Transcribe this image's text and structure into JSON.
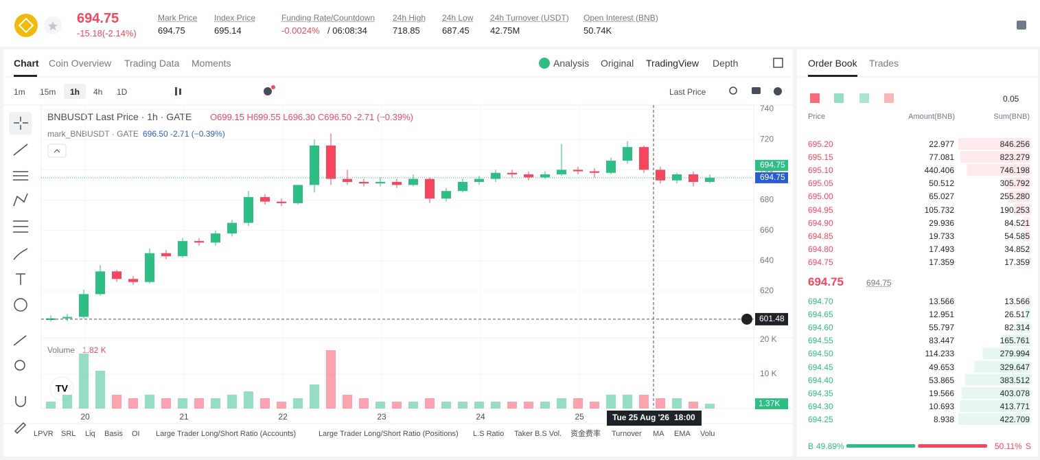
{
  "header": {
    "price": "694.75",
    "change": "-15.18(-2.14%)",
    "stats": [
      {
        "label": "Mark Price",
        "value": "694.75"
      },
      {
        "label": "Index Price",
        "value": "695.14"
      },
      {
        "label": "Funding Rate/Countdown",
        "value": "-0.0024%",
        "extra": "/ 06:08:34"
      },
      {
        "label": "24h High",
        "value": "718.85"
      },
      {
        "label": "24h Low",
        "value": "687.45"
      },
      {
        "label": "24h Turnover (USDT)",
        "value": "42.75M"
      },
      {
        "label": "Open Interest (BNB)",
        "value": "50.74K"
      }
    ]
  },
  "tabs": [
    "Chart",
    "Coin Overview",
    "Trading Data",
    "Moments"
  ],
  "view_tabs": [
    "Analysis",
    "Original",
    "TradingView",
    "Depth"
  ],
  "intervals": [
    "1m",
    "15m",
    "1h",
    "4h",
    "1D"
  ],
  "price_source": "Last Price",
  "legend": {
    "main": "BNBUSDT Last Price · 1h · GATE",
    "ohlc": "O699.15 H699.55 L696.30 C696.50 -2.71 (−0.39%)",
    "mark_name": "mark_BNBUSDT · GATE",
    "mark_values": "696.50 -2.71 (−0.39%)",
    "volume_title": "Volume",
    "volume_hover": "1.82 K"
  },
  "chart_data": {
    "type": "candlestick",
    "up_color": "#2ebd85",
    "down_color": "#f6465d",
    "categories": [
      "20",
      "21",
      "22",
      "23",
      "24",
      "25"
    ],
    "open": [
      601,
      602,
      603,
      618,
      633,
      628,
      626,
      645,
      643,
      653,
      652,
      658,
      665,
      682,
      679,
      678,
      690,
      716,
      694,
      692,
      691,
      692,
      690,
      694,
      681,
      686,
      692,
      694,
      698,
      697,
      695,
      697,
      700,
      699,
      698,
      706,
      715,
      700,
      693,
      697,
      692
    ],
    "high": [
      604,
      605,
      621,
      637,
      634,
      630,
      648,
      647,
      655,
      655,
      660,
      667,
      686,
      684,
      681,
      689,
      720,
      724,
      700,
      694,
      695,
      694,
      697,
      695,
      688,
      694,
      696,
      700,
      700,
      699,
      699,
      717,
      702,
      701,
      708,
      719,
      716,
      702,
      698,
      699,
      697
    ],
    "low": [
      600,
      600,
      602,
      617,
      626,
      624,
      625,
      641,
      642,
      650,
      650,
      656,
      663,
      677,
      676,
      677,
      685,
      690,
      690,
      689,
      689,
      688,
      689,
      678,
      679,
      685,
      690,
      692,
      695,
      693,
      694,
      696,
      697,
      695,
      697,
      704,
      698,
      691,
      691,
      689,
      691
    ],
    "close": [
      602,
      603,
      618,
      633,
      628,
      626,
      645,
      643,
      653,
      652,
      658,
      665,
      682,
      679,
      678,
      690,
      716,
      694,
      692,
      691,
      692,
      690,
      694,
      681,
      686,
      692,
      694,
      698,
      697,
      695,
      697,
      700,
      699,
      698,
      706,
      715,
      700,
      693,
      697,
      692,
      694.75
    ],
    "volume": [
      2,
      4,
      16,
      11,
      4,
      3,
      4,
      3,
      3,
      3,
      3,
      4,
      5,
      3,
      2,
      3,
      7,
      17,
      4,
      3,
      2,
      2,
      2,
      3,
      2,
      2,
      2,
      2,
      2,
      2,
      2,
      3,
      3,
      2,
      4,
      4,
      4,
      3,
      3,
      2,
      1.37
    ],
    "volume_labels": {
      "40": "1.37K"
    },
    "ylim": [
      589.2,
      742.7
    ],
    "yticks": [
      620,
      640,
      660,
      680,
      700,
      720,
      740
    ],
    "y2lim": [
      0,
      20.4
    ],
    "y2ticks": [
      {
        "value": 10,
        "label": "10 K"
      },
      {
        "value": 20,
        "label": "20 K"
      }
    ],
    "last_price": {
      "value": 694.75,
      "label": "694.75"
    },
    "crosshair": {
      "value": 601.48,
      "label": "601.48",
      "date": "Tue 25 Aug '26",
      "time": "18:00"
    }
  },
  "indicators": [
    "LPVR",
    "SRL",
    "Liq",
    "Basis",
    "OI",
    "Large Trader Long/Short Ratio (Accounts)",
    "Large Trader Long/Short Ratio (Positions)",
    "L.S Ratio",
    "Taker B.S Vol.",
    "资金费率",
    "Turnover",
    "MA",
    "EMA",
    "Volu"
  ],
  "order_book": {
    "tabs": [
      "Order Book",
      "Trades"
    ],
    "tick": "0.05",
    "columns": [
      "Price",
      "Amount(BNB)",
      "Sum(BNB)"
    ],
    "asks": [
      {
        "price": "695.20",
        "amount": 22.977,
        "sum": 846.256
      },
      {
        "price": "695.15",
        "amount": 77.081,
        "sum": 823.279
      },
      {
        "price": "695.10",
        "amount": 440.406,
        "sum": 746.198
      },
      {
        "price": "695.05",
        "amount": 50.512,
        "sum": 305.792
      },
      {
        "price": "695.00",
        "amount": 65.027,
        "sum": {
          "value": 255.28,
          "label": "255.280"
        }
      },
      {
        "price": "694.95",
        "amount": 105.732,
        "sum": 190.253
      },
      {
        "price": "694.90",
        "amount": 29.936,
        "sum": 84.521
      },
      {
        "price": "694.85",
        "amount": 19.733,
        "sum": 54.585
      },
      {
        "price": "694.80",
        "amount": 17.493,
        "sum": 34.852
      },
      {
        "price": "694.75",
        "amount": 17.359,
        "sum": 17.359
      }
    ],
    "last": "694.75",
    "mark": "694.75",
    "bids": [
      {
        "price": "694.70",
        "amount": 13.566,
        "sum": 13.566
      },
      {
        "price": "694.65",
        "amount": 12.951,
        "sum": 26.517
      },
      {
        "price": "694.60",
        "amount": 55.797,
        "sum": 82.314
      },
      {
        "price": "694.55",
        "amount": 83.447,
        "sum": 165.761
      },
      {
        "price": "694.50",
        "amount": 114.233,
        "sum": 279.994
      },
      {
        "price": "694.45",
        "amount": 49.653,
        "sum": 329.647
      },
      {
        "price": "694.40",
        "amount": 53.865,
        "sum": 383.512
      },
      {
        "price": "694.35",
        "amount": 19.566,
        "sum": 403.078
      },
      {
        "price": "694.30",
        "amount": 10.693,
        "sum": 413.771
      },
      {
        "price": "694.25",
        "amount": 8.938,
        "sum": 422.709
      }
    ],
    "buy_label": "B",
    "buy_pct": 49.89,
    "buy_pct_label": "49.89%",
    "sell_pct": 50.11,
    "sell_pct_label": "50.11%",
    "sell_label": "S"
  }
}
